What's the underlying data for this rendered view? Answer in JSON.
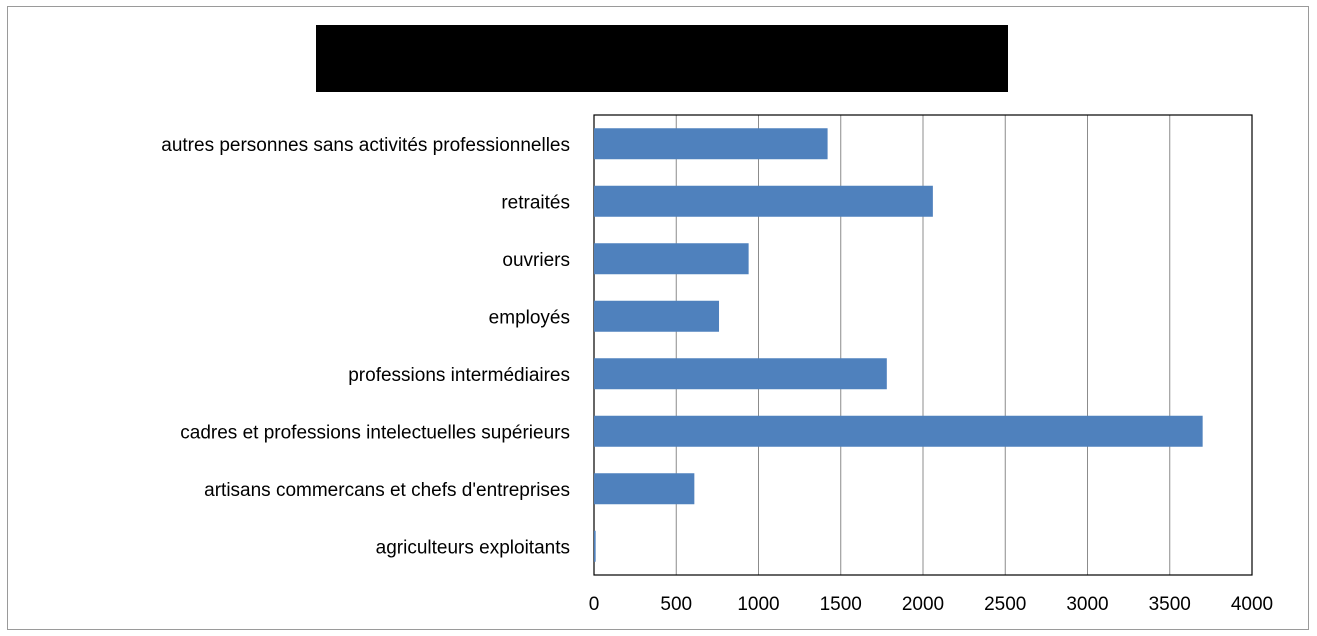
{
  "chart_data": {
    "type": "bar",
    "orientation": "horizontal",
    "title": "",
    "xlabel": "",
    "ylabel": "",
    "categories": [
      "agriculteurs exploitants",
      "artisans commercans et chefs d'entreprises",
      "cadres et professions intelectuelles supérieurs",
      "professions intermédiaires",
      "employés",
      "ouvriers",
      "retraités",
      "autres personnes sans activités professionnelles"
    ],
    "values": [
      10,
      610,
      3700,
      1780,
      760,
      940,
      2060,
      1420
    ],
    "xlim": [
      0,
      4000
    ],
    "xticks": [
      0,
      500,
      1000,
      1500,
      2000,
      2500,
      3000,
      3500,
      4000
    ],
    "grid": "vertical",
    "legend": "none",
    "bar_color": "#4f81bd",
    "title_redaction_color": "#000000"
  }
}
